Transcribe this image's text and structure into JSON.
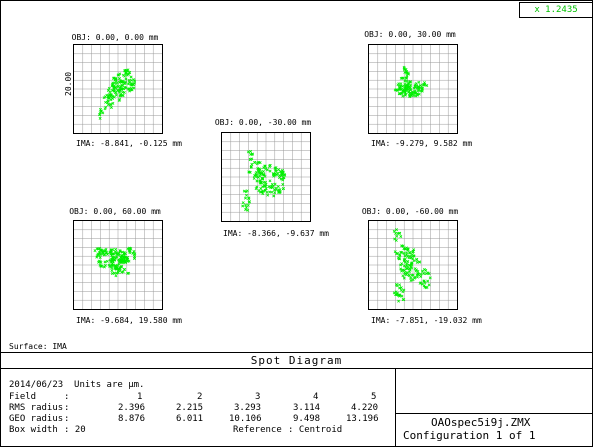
{
  "readout": {
    "value": "x  1.2435"
  },
  "plots": [
    {
      "obj": "OBJ: 0.00, 0.00 mm",
      "ima": "IMA: -8.841, -0.125 mm",
      "scale": "20.00"
    },
    {
      "obj": "OBJ: 0.00, 30.00 mm",
      "ima": "IMA: -9.279, 9.582 mm"
    },
    {
      "obj": "OBJ: 0.00, -30.00 mm",
      "ima": "IMA: -8.366, -9.637 mm"
    },
    {
      "obj": "OBJ: 0.00, 60.00 mm",
      "ima": "IMA: -9.684, 19.580 mm"
    },
    {
      "obj": "OBJ: 0.00, -60.00 mm",
      "ima": "IMA: -7.851, -19.032 mm"
    }
  ],
  "surface": "Surface: IMA",
  "title": "Spot Diagram",
  "info": {
    "date_units": "2014/06/23  Units are µm.",
    "rows": [
      {
        "label": "Field",
        "sep": ":",
        "values": [
          "1",
          "2",
          "3",
          "4",
          "5"
        ]
      },
      {
        "label": "RMS radius",
        "sep": ":",
        "values": [
          "2.396",
          "2.215",
          "3.293",
          "3.114",
          "4.220"
        ]
      },
      {
        "label": "GEO radius",
        "sep": ":",
        "values": [
          "8.876",
          "6.011",
          "10.106",
          "9.498",
          "13.196"
        ]
      }
    ],
    "box_width_label": "Box width",
    "box_width_value": ": 20",
    "reference_label": "Reference",
    "reference_value": ": Centroid"
  },
  "file_name": "OAOspec5i9j.ZMX",
  "configuration": "Configuration 1 of 1",
  "colors": {
    "spot": "#00ee00",
    "grid": "#9a9a9a",
    "readout": "#00c000"
  }
}
